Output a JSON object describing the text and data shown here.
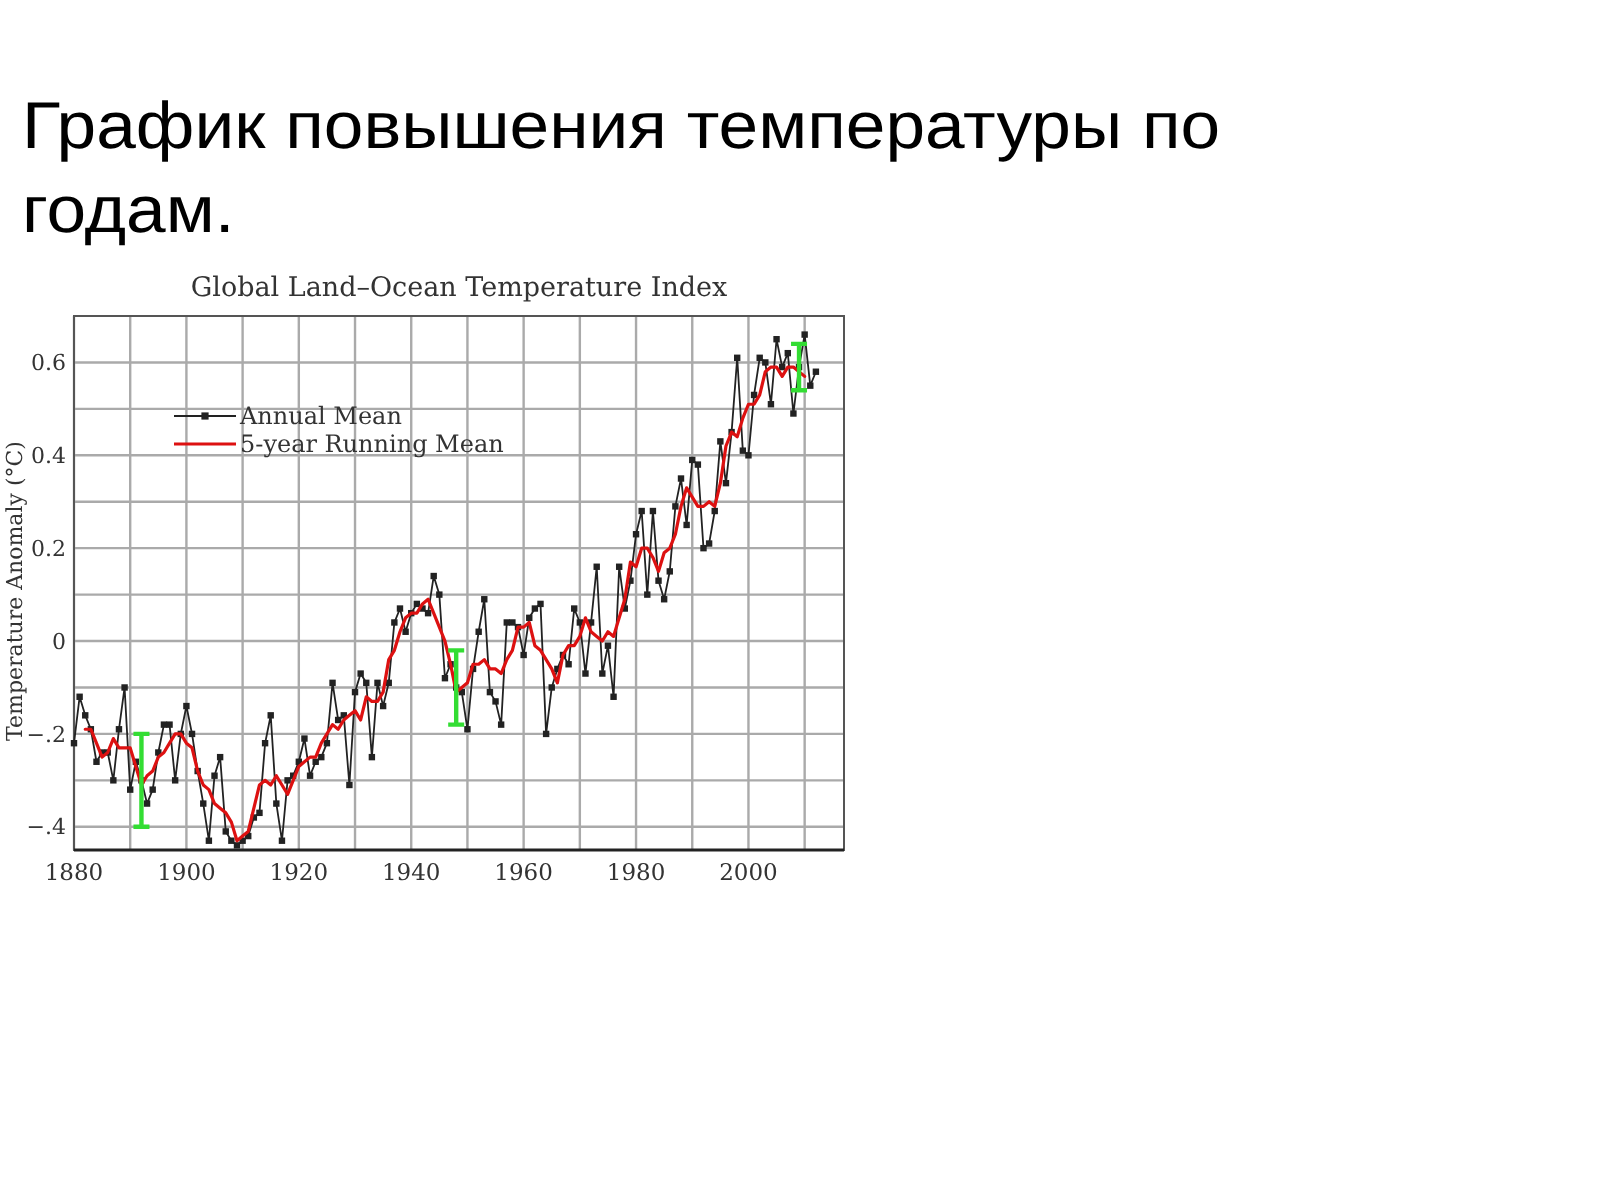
{
  "chart_data": {
    "type": "line",
    "title": "График повышения температуры по годам.",
    "subtitle": "Global Land–Ocean Temperature Index",
    "ylabel": "Temperature Anomaly (°C)",
    "xlim": [
      1880,
      2017
    ],
    "xticks": [
      1880,
      {
        "value": 1890,
        "label": null
      },
      1900,
      {
        "value": 1910,
        "label": null
      },
      1920,
      {
        "value": 1930,
        "label": null
      },
      1940,
      {
        "value": 1950,
        "label": null
      },
      1960,
      {
        "value": 1970,
        "label": null
      },
      1980,
      {
        "value": 1990,
        "label": null
      },
      2000,
      {
        "value": 2010,
        "label": null
      }
    ],
    "ylim": [
      -0.45,
      0.7
    ],
    "yticks": [
      {
        "value": -0.4,
        "label": "−.4"
      },
      {
        "value": -0.3,
        "label": null
      },
      {
        "value": -0.2,
        "label": "−.2"
      },
      {
        "value": -0.1,
        "label": null
      },
      0,
      {
        "value": 0.1,
        "label": null
      },
      0.2,
      {
        "value": 0.3,
        "label": null
      },
      0.4,
      {
        "value": 0.5,
        "label": null
      },
      0.6
    ],
    "grid": true,
    "legend": "top left",
    "series": [
      {
        "name": "Annual Mean",
        "color": "#222222",
        "marker": "square",
        "x": [
          1880,
          1881,
          1882,
          1883,
          1884,
          1885,
          1886,
          1887,
          1888,
          1889,
          1890,
          1891,
          1892,
          1893,
          1894,
          1895,
          1896,
          1897,
          1898,
          1899,
          1900,
          1901,
          1902,
          1903,
          1904,
          1905,
          1906,
          1907,
          1908,
          1909,
          1910,
          1911,
          1912,
          1913,
          1914,
          1915,
          1916,
          1917,
          1918,
          1919,
          1920,
          1921,
          1922,
          1923,
          1924,
          1925,
          1926,
          1927,
          1928,
          1929,
          1930,
          1931,
          1932,
          1933,
          1934,
          1935,
          1936,
          1937,
          1938,
          1939,
          1940,
          1941,
          1942,
          1943,
          1944,
          1945,
          1946,
          1947,
          1948,
          1949,
          1950,
          1951,
          1952,
          1953,
          1954,
          1955,
          1956,
          1957,
          1958,
          1959,
          1960,
          1961,
          1962,
          1963,
          1964,
          1965,
          1966,
          1967,
          1968,
          1969,
          1970,
          1971,
          1972,
          1973,
          1974,
          1975,
          1976,
          1977,
          1978,
          1979,
          1980,
          1981,
          1982,
          1983,
          1984,
          1985,
          1986,
          1987,
          1988,
          1989,
          1990,
          1991,
          1992,
          1993,
          1994,
          1995,
          1996,
          1997,
          1998,
          1999,
          2000,
          2001,
          2002,
          2003,
          2004,
          2005,
          2006,
          2007,
          2008,
          2009,
          2010,
          2011,
          2012
        ],
        "values": [
          -0.22,
          -0.12,
          -0.16,
          -0.19,
          -0.26,
          -0.24,
          -0.24,
          -0.3,
          -0.19,
          -0.1,
          -0.32,
          -0.26,
          -0.3,
          -0.35,
          -0.32,
          -0.24,
          -0.18,
          -0.18,
          -0.3,
          -0.2,
          -0.14,
          -0.2,
          -0.28,
          -0.35,
          -0.43,
          -0.29,
          -0.25,
          -0.41,
          -0.43,
          -0.44,
          -0.43,
          -0.42,
          -0.38,
          -0.37,
          -0.22,
          -0.16,
          -0.35,
          -0.43,
          -0.3,
          -0.29,
          -0.26,
          -0.21,
          -0.29,
          -0.26,
          -0.25,
          -0.22,
          -0.09,
          -0.17,
          -0.16,
          -0.31,
          -0.11,
          -0.07,
          -0.09,
          -0.25,
          -0.09,
          -0.14,
          -0.09,
          0.04,
          0.07,
          0.02,
          0.06,
          0.08,
          0.07,
          0.06,
          0.14,
          0.1,
          -0.08,
          -0.05,
          -0.1,
          -0.11,
          -0.19,
          -0.06,
          0.02,
          0.09,
          -0.11,
          -0.13,
          -0.18,
          0.04,
          0.04,
          0.03,
          -0.03,
          0.05,
          0.07,
          0.08,
          -0.2,
          -0.1,
          -0.06,
          -0.03,
          -0.05,
          0.07,
          0.04,
          -0.07,
          0.04,
          0.16,
          -0.07,
          -0.01,
          -0.12,
          0.16,
          0.07,
          0.13,
          0.23,
          0.28,
          0.1,
          0.28,
          0.13,
          0.09,
          0.15,
          0.29,
          0.35,
          0.25,
          0.39,
          0.38,
          0.2,
          0.21,
          0.28,
          0.43,
          0.34,
          0.45,
          0.61,
          0.41,
          0.4,
          0.53,
          0.61,
          0.6,
          0.51,
          0.65,
          0.59,
          0.62,
          0.49,
          0.59,
          0.66,
          0.55,
          0.58
        ],
        "errors": [
          null,
          null,
          null,
          null,
          null,
          null,
          null,
          null,
          null,
          null,
          null,
          null,
          0.1,
          null,
          null,
          null,
          null,
          null,
          null,
          null,
          null,
          null,
          null,
          null,
          null,
          null,
          null,
          null,
          null,
          null,
          null,
          null,
          null,
          null,
          null,
          null,
          null,
          null,
          null,
          null,
          null,
          null,
          null,
          null,
          null,
          null,
          null,
          null,
          null,
          null,
          null,
          null,
          null,
          null,
          null,
          null,
          null,
          null,
          null,
          null,
          null,
          null,
          null,
          null,
          null,
          null,
          null,
          null,
          0.08,
          null,
          null,
          null,
          null,
          null,
          null,
          null,
          null,
          null,
          null,
          null,
          null,
          null,
          null,
          null,
          null,
          null,
          null,
          null,
          null,
          null,
          null,
          null,
          null,
          null,
          null,
          null,
          null,
          null,
          null,
          null,
          null,
          null,
          null,
          null,
          null,
          null,
          null,
          null,
          null,
          null,
          null,
          null,
          null,
          null,
          null,
          null,
          null,
          null,
          null,
          null,
          null,
          null,
          null,
          null,
          null,
          null,
          null,
          null,
          null,
          0.05,
          null,
          null,
          null
        ]
      },
      {
        "name": "5-year Running Mean",
        "color": "#dd1111",
        "marker": "none",
        "x": [
          1882,
          1883,
          1884,
          1885,
          1886,
          1887,
          1888,
          1889,
          1890,
          1891,
          1892,
          1893,
          1894,
          1895,
          1896,
          1897,
          1898,
          1899,
          1900,
          1901,
          1902,
          1903,
          1904,
          1905,
          1906,
          1907,
          1908,
          1909,
          1910,
          1911,
          1912,
          1913,
          1914,
          1915,
          1916,
          1917,
          1918,
          1919,
          1920,
          1921,
          1922,
          1923,
          1924,
          1925,
          1926,
          1927,
          1928,
          1929,
          1930,
          1931,
          1932,
          1933,
          1934,
          1935,
          1936,
          1937,
          1938,
          1939,
          1940,
          1941,
          1942,
          1943,
          1944,
          1945,
          1946,
          1947,
          1948,
          1949,
          1950,
          1951,
          1952,
          1953,
          1954,
          1955,
          1956,
          1957,
          1958,
          1959,
          1960,
          1961,
          1962,
          1963,
          1964,
          1965,
          1966,
          1967,
          1968,
          1969,
          1970,
          1971,
          1972,
          1973,
          1974,
          1975,
          1976,
          1977,
          1978,
          1979,
          1980,
          1981,
          1982,
          1983,
          1984,
          1985,
          1986,
          1987,
          1988,
          1989,
          1990,
          1991,
          1992,
          1993,
          1994,
          1995,
          1996,
          1997,
          1998,
          1999,
          2000,
          2001,
          2002,
          2003,
          2004,
          2005,
          2006,
          2007,
          2008,
          2009,
          2010
        ],
        "values": [
          -0.19,
          -0.19,
          -0.22,
          -0.25,
          -0.24,
          -0.21,
          -0.23,
          -0.23,
          -0.23,
          -0.27,
          -0.31,
          -0.29,
          -0.28,
          -0.25,
          -0.24,
          -0.22,
          -0.2,
          -0.2,
          -0.22,
          -0.23,
          -0.28,
          -0.31,
          -0.32,
          -0.35,
          -0.36,
          -0.37,
          -0.39,
          -0.43,
          -0.42,
          -0.41,
          -0.36,
          -0.31,
          -0.3,
          -0.31,
          -0.29,
          -0.31,
          -0.33,
          -0.3,
          -0.27,
          -0.26,
          -0.25,
          -0.25,
          -0.22,
          -0.2,
          -0.18,
          -0.19,
          -0.17,
          -0.16,
          -0.15,
          -0.17,
          -0.12,
          -0.13,
          -0.13,
          -0.11,
          -0.04,
          -0.02,
          0.02,
          0.05,
          0.06,
          0.06,
          0.08,
          0.09,
          0.06,
          0.03,
          0.0,
          -0.05,
          -0.11,
          -0.1,
          -0.09,
          -0.05,
          -0.05,
          -0.04,
          -0.06,
          -0.06,
          -0.07,
          -0.04,
          -0.02,
          0.03,
          0.03,
          0.04,
          -0.01,
          -0.02,
          -0.04,
          -0.06,
          -0.09,
          -0.03,
          -0.01,
          -0.01,
          0.01,
          0.05,
          0.02,
          0.01,
          0.0,
          0.02,
          0.01,
          0.05,
          0.09,
          0.17,
          0.16,
          0.2,
          0.2,
          0.18,
          0.15,
          0.19,
          0.2,
          0.23,
          0.29,
          0.33,
          0.31,
          0.29,
          0.29,
          0.3,
          0.29,
          0.34,
          0.42,
          0.45,
          0.44,
          0.48,
          0.51,
          0.51,
          0.53,
          0.58,
          0.59,
          0.59,
          0.57,
          0.59,
          0.59,
          0.58,
          0.57
        ]
      }
    ]
  }
}
